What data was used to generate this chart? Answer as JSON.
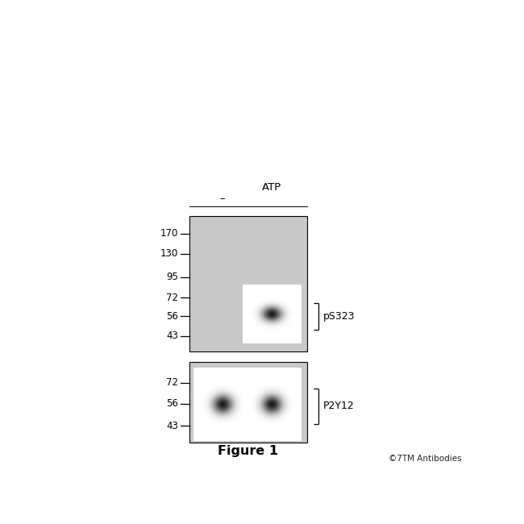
{
  "background_color": "#ffffff",
  "gel_bg_color": "#c8c8c8",
  "figure_label": "Figure 1",
  "copyright": "©7TM Antibodies",
  "lane_labels": [
    "–",
    "ATP"
  ],
  "panel1": {
    "mw_markers": [
      170,
      130,
      95,
      72,
      56,
      43
    ],
    "label": "pS323"
  },
  "panel2": {
    "mw_markers": [
      72,
      56,
      43
    ],
    "label": "P2Y12"
  }
}
